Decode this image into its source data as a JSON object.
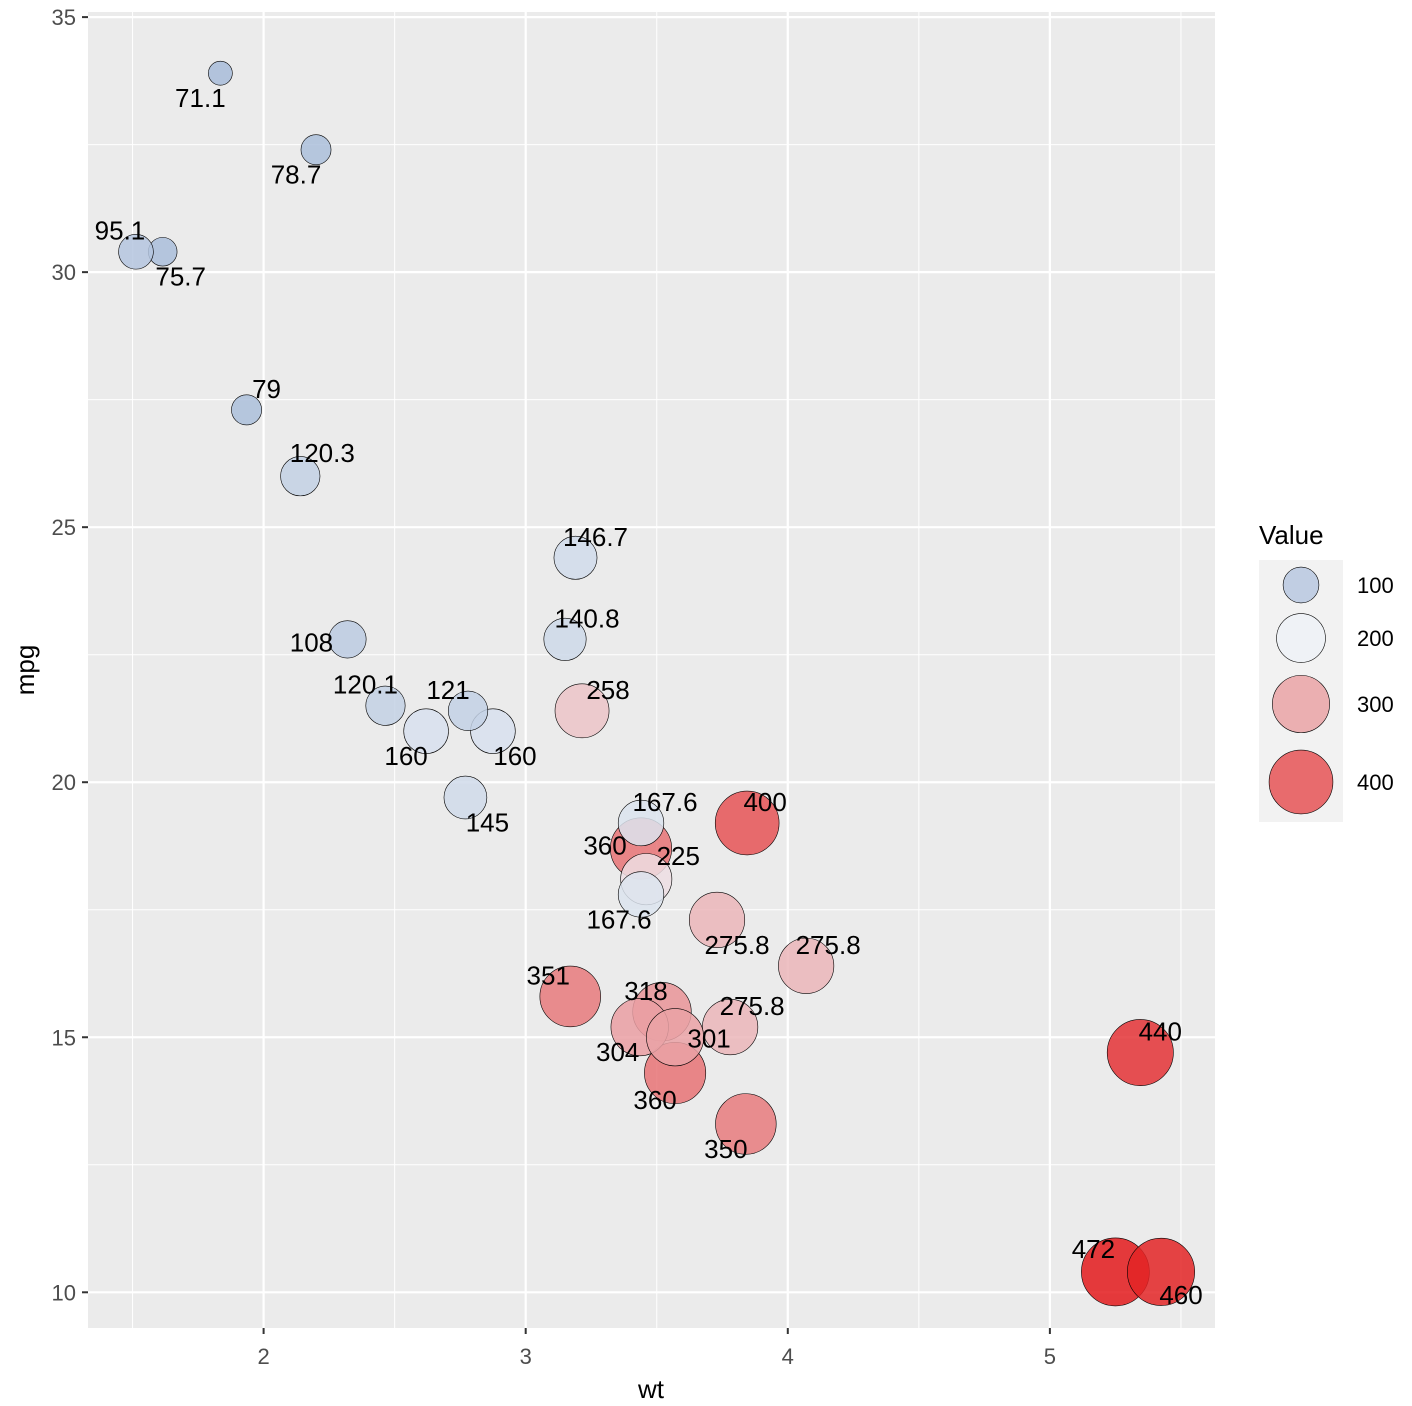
{
  "chart_data": {
    "type": "scatter",
    "title": "",
    "xlabel": "wt",
    "ylabel": "mpg",
    "xlim": [
      1.33,
      5.63
    ],
    "ylim": [
      9.3,
      35.1
    ],
    "xticks": [
      2,
      3,
      4,
      5
    ],
    "yticks": [
      10,
      15,
      20,
      25,
      30,
      35
    ],
    "xtick_labels": [
      "2",
      "3",
      "4",
      "5"
    ],
    "ytick_labels": [
      "10",
      "15",
      "20",
      "25",
      "30",
      "35"
    ],
    "grid": true,
    "legend": {
      "title": "Value",
      "placement": "right",
      "entries": [
        {
          "value": 100,
          "label": "100"
        },
        {
          "value": 200,
          "label": "200"
        },
        {
          "value": 300,
          "label": "300"
        },
        {
          "value": 400,
          "label": "400"
        }
      ]
    },
    "colors": {
      "low": "#a8bcd9",
      "mid": "#eef2f7",
      "high": "#e31a1c",
      "panel": "#ebebeb",
      "grid": "#ffffff",
      "legend_bg": "#f2f2f2"
    },
    "color_range": [
      71.1,
      472
    ],
    "points": [
      {
        "x": 2.62,
        "y": 21.0,
        "value": 160,
        "label": "160"
      },
      {
        "x": 2.875,
        "y": 21.0,
        "value": 160,
        "label": "160"
      },
      {
        "x": 2.32,
        "y": 22.8,
        "value": 108,
        "label": "108"
      },
      {
        "x": 3.215,
        "y": 21.4,
        "value": 258,
        "label": "258"
      },
      {
        "x": 3.44,
        "y": 18.7,
        "value": 360,
        "label": "360"
      },
      {
        "x": 3.46,
        "y": 18.1,
        "value": 225,
        "label": "225"
      },
      {
        "x": 3.57,
        "y": 14.3,
        "value": 360,
        "label": "360"
      },
      {
        "x": 3.19,
        "y": 24.4,
        "value": 146.7,
        "label": "146.7"
      },
      {
        "x": 3.15,
        "y": 22.8,
        "value": 140.8,
        "label": "140.8"
      },
      {
        "x": 3.44,
        "y": 19.2,
        "value": 167.6,
        "label": "167.6"
      },
      {
        "x": 3.44,
        "y": 17.8,
        "value": 167.6,
        "label": "167.6"
      },
      {
        "x": 4.07,
        "y": 16.4,
        "value": 275.8,
        "label": "275.8"
      },
      {
        "x": 3.73,
        "y": 17.3,
        "value": 275.8,
        "label": "275.8"
      },
      {
        "x": 3.78,
        "y": 15.2,
        "value": 275.8,
        "label": "275.8"
      },
      {
        "x": 5.25,
        "y": 10.4,
        "value": 472,
        "label": "472"
      },
      {
        "x": 5.424,
        "y": 10.4,
        "value": 460,
        "label": "460"
      },
      {
        "x": 5.345,
        "y": 14.7,
        "value": 440,
        "label": "440"
      },
      {
        "x": 2.2,
        "y": 32.4,
        "value": 78.7,
        "label": "78.7"
      },
      {
        "x": 1.615,
        "y": 30.4,
        "value": 75.7,
        "label": "75.7"
      },
      {
        "x": 1.835,
        "y": 33.9,
        "value": 71.1,
        "label": "71.1"
      },
      {
        "x": 2.465,
        "y": 21.5,
        "value": 120.1,
        "label": "120.1"
      },
      {
        "x": 3.52,
        "y": 15.5,
        "value": 318,
        "label": "318"
      },
      {
        "x": 3.435,
        "y": 15.2,
        "value": 304,
        "label": "304"
      },
      {
        "x": 3.84,
        "y": 13.3,
        "value": 350,
        "label": "350"
      },
      {
        "x": 3.845,
        "y": 19.2,
        "value": 400,
        "label": "400"
      },
      {
        "x": 1.935,
        "y": 27.3,
        "value": 79,
        "label": "79"
      },
      {
        "x": 2.14,
        "y": 26.0,
        "value": 120.3,
        "label": "120.3"
      },
      {
        "x": 1.513,
        "y": 30.4,
        "value": 95.1,
        "label": "95.1"
      },
      {
        "x": 3.17,
        "y": 15.8,
        "value": 351,
        "label": "351"
      },
      {
        "x": 2.77,
        "y": 19.7,
        "value": 145,
        "label": "145"
      },
      {
        "x": 3.57,
        "y": 15.0,
        "value": 301,
        "label": "301"
      },
      {
        "x": 2.78,
        "y": 21.4,
        "value": 121,
        "label": "121"
      }
    ]
  }
}
